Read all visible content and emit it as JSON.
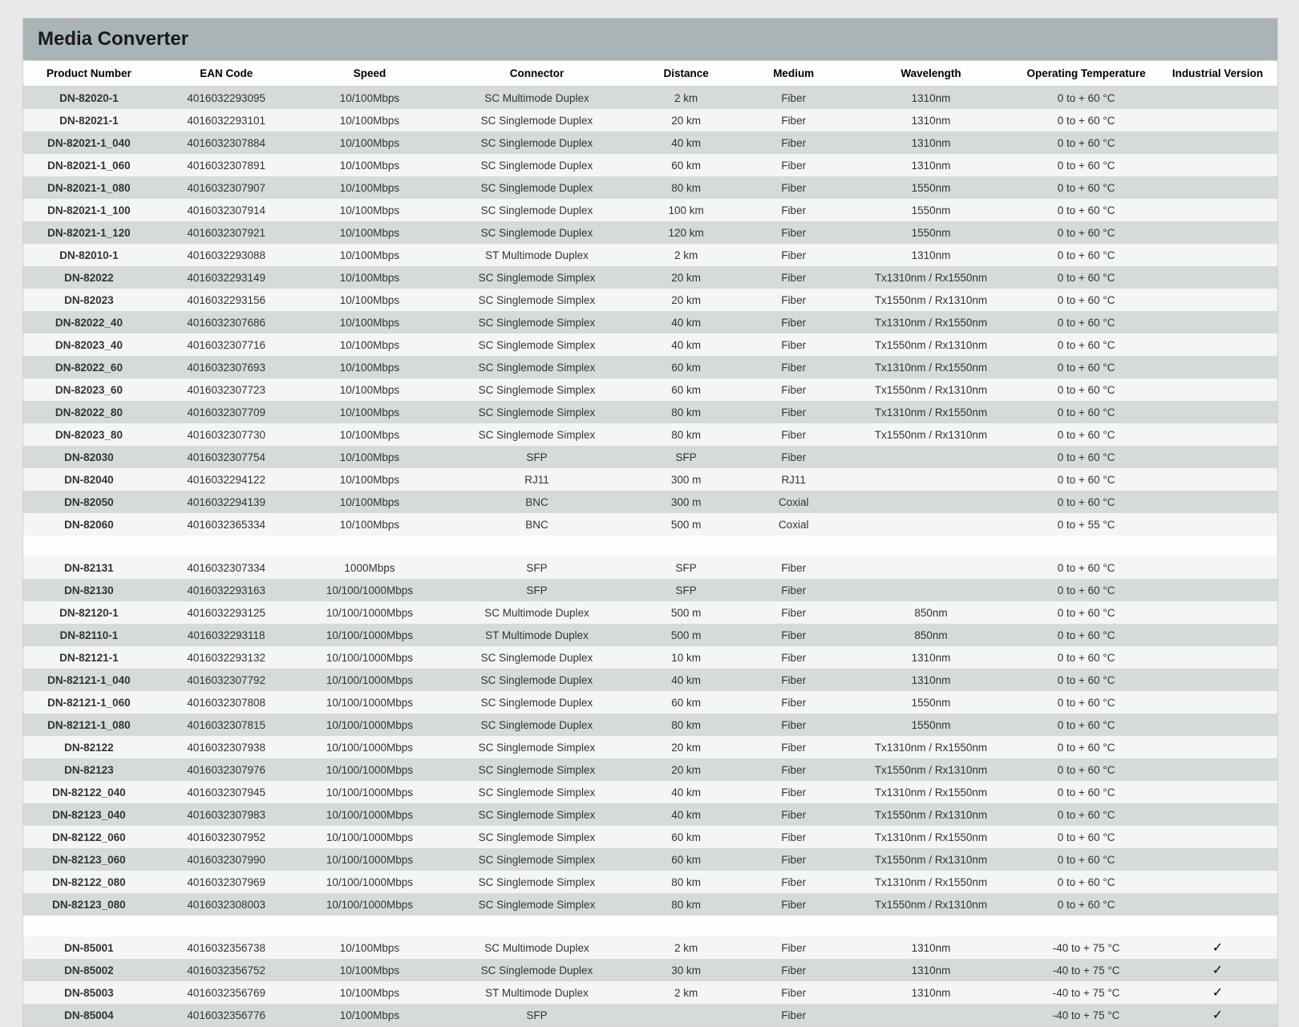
{
  "layout": {
    "page_bg": "#e9e9e9",
    "header_bg": "#a9b4b7",
    "row_light_bg": "#f4f5f5",
    "row_dark_bg": "#d5dadb",
    "row_gap_bg": "#fefefe",
    "font_family": "Arial",
    "header_fontsize": 24,
    "body_fontsize": 13.5,
    "col_widths_pct": [
      11,
      12,
      12,
      16,
      9,
      9,
      14,
      12,
      10
    ]
  },
  "title": "Media Converter",
  "columns": [
    "Product Number",
    "EAN Code",
    "Speed",
    "Connector",
    "Distance",
    "Medium",
    "Wavelength",
    "Operating Temperature",
    "Industrial Version"
  ],
  "rows": [
    {
      "shade": "dark",
      "c": [
        "DN-82020-1",
        "4016032293095",
        "10/100Mbps",
        "SC Multimode Duplex",
        "2 km",
        "Fiber",
        "1310nm",
        "0 to + 60 °C",
        ""
      ]
    },
    {
      "shade": "light",
      "c": [
        "DN-82021-1",
        "4016032293101",
        "10/100Mbps",
        "SC Singlemode Duplex",
        "20 km",
        "Fiber",
        "1310nm",
        "0 to + 60 °C",
        ""
      ]
    },
    {
      "shade": "dark",
      "c": [
        "DN-82021-1_040",
        "4016032307884",
        "10/100Mbps",
        "SC Singlemode Duplex",
        "40 km",
        "Fiber",
        "1310nm",
        "0 to + 60 °C",
        ""
      ]
    },
    {
      "shade": "light",
      "c": [
        "DN-82021-1_060",
        "4016032307891",
        "10/100Mbps",
        "SC Singlemode Duplex",
        "60 km",
        "Fiber",
        "1310nm",
        "0 to + 60 °C",
        ""
      ]
    },
    {
      "shade": "dark",
      "c": [
        "DN-82021-1_080",
        "4016032307907",
        "10/100Mbps",
        "SC Singlemode Duplex",
        "80 km",
        "Fiber",
        "1550nm",
        "0 to + 60 °C",
        ""
      ]
    },
    {
      "shade": "light",
      "c": [
        "DN-82021-1_100",
        "4016032307914",
        "10/100Mbps",
        "SC Singlemode Duplex",
        "100 km",
        "Fiber",
        "1550nm",
        "0 to + 60 °C",
        ""
      ]
    },
    {
      "shade": "dark",
      "c": [
        "DN-82021-1_120",
        "4016032307921",
        "10/100Mbps",
        "SC Singlemode Duplex",
        "120 km",
        "Fiber",
        "1550nm",
        "0 to + 60 °C",
        ""
      ]
    },
    {
      "shade": "light",
      "c": [
        "DN-82010-1",
        "4016032293088",
        "10/100Mbps",
        "ST Multimode Duplex",
        "2 km",
        "Fiber",
        "1310nm",
        "0 to + 60 °C",
        ""
      ]
    },
    {
      "shade": "dark",
      "c": [
        "DN-82022",
        "4016032293149",
        "10/100Mbps",
        "SC Singlemode Simplex",
        "20 km",
        "Fiber",
        "Tx1310nm / Rx1550nm",
        "0 to + 60 °C",
        ""
      ]
    },
    {
      "shade": "light",
      "c": [
        "DN-82023",
        "4016032293156",
        "10/100Mbps",
        "SC Singlemode Simplex",
        "20 km",
        "Fiber",
        "Tx1550nm / Rx1310nm",
        "0 to + 60 °C",
        ""
      ]
    },
    {
      "shade": "dark",
      "c": [
        "DN-82022_40",
        "4016032307686",
        "10/100Mbps",
        "SC Singlemode Simplex",
        "40 km",
        "Fiber",
        "Tx1310nm / Rx1550nm",
        "0 to + 60 °C",
        ""
      ]
    },
    {
      "shade": "light",
      "c": [
        "DN-82023_40",
        "4016032307716",
        "10/100Mbps",
        "SC Singlemode Simplex",
        "40 km",
        "Fiber",
        "Tx1550nm / Rx1310nm",
        "0 to + 60 °C",
        ""
      ]
    },
    {
      "shade": "dark",
      "c": [
        "DN-82022_60",
        "4016032307693",
        "10/100Mbps",
        "SC Singlemode Simplex",
        "60 km",
        "Fiber",
        "Tx1310nm / Rx1550nm",
        "0 to + 60 °C",
        ""
      ]
    },
    {
      "shade": "light",
      "c": [
        "DN-82023_60",
        "4016032307723",
        "10/100Mbps",
        "SC Singlemode Simplex",
        "60 km",
        "Fiber",
        "Tx1550nm / Rx1310nm",
        "0 to + 60 °C",
        ""
      ]
    },
    {
      "shade": "dark",
      "c": [
        "DN-82022_80",
        "4016032307709",
        "10/100Mbps",
        "SC Singlemode Simplex",
        "80 km",
        "Fiber",
        "Tx1310nm / Rx1550nm",
        "0 to + 60 °C",
        ""
      ]
    },
    {
      "shade": "light",
      "c": [
        "DN-82023_80",
        "4016032307730",
        "10/100Mbps",
        "SC Singlemode Simplex",
        "80 km",
        "Fiber",
        "Tx1550nm / Rx1310nm",
        "0 to + 60 °C",
        ""
      ]
    },
    {
      "shade": "dark",
      "c": [
        "DN-82030",
        "4016032307754",
        "10/100Mbps",
        "SFP",
        "SFP",
        "Fiber",
        "",
        "0 to + 60 °C",
        ""
      ]
    },
    {
      "shade": "light",
      "c": [
        "DN-82040",
        "4016032294122",
        "10/100Mbps",
        "RJ11",
        "300 m",
        "RJ11",
        "",
        "0 to + 60 °C",
        ""
      ]
    },
    {
      "shade": "dark",
      "c": [
        "DN-82050",
        "4016032294139",
        "10/100Mbps",
        "BNC",
        "300 m",
        "Coxial",
        "",
        "0 to + 60 °C",
        ""
      ]
    },
    {
      "shade": "light",
      "c": [
        "DN-82060",
        "4016032365334",
        "10/100Mbps",
        "BNC",
        "500 m",
        "Coxial",
        "",
        "0 to + 55 °C",
        ""
      ]
    },
    {
      "shade": "gap",
      "c": [
        "",
        "",
        "",
        "",
        "",
        "",
        "",
        "",
        ""
      ]
    },
    {
      "shade": "light",
      "c": [
        "DN-82131",
        "4016032307334",
        "1000Mbps",
        "SFP",
        "SFP",
        "Fiber",
        "",
        "0 to + 60 °C",
        ""
      ]
    },
    {
      "shade": "dark",
      "c": [
        "DN-82130",
        "4016032293163",
        "10/100/1000Mbps",
        "SFP",
        "SFP",
        "Fiber",
        "",
        "0 to + 60 °C",
        ""
      ]
    },
    {
      "shade": "light",
      "c": [
        "DN-82120-1",
        "4016032293125",
        "10/100/1000Mbps",
        "SC Multimode Duplex",
        "500 m",
        "Fiber",
        "850nm",
        "0 to + 60 °C",
        ""
      ]
    },
    {
      "shade": "dark",
      "c": [
        "DN-82110-1",
        "4016032293118",
        "10/100/1000Mbps",
        "ST Multimode Duplex",
        "500 m",
        "Fiber",
        "850nm",
        "0 to + 60 °C",
        ""
      ]
    },
    {
      "shade": "light",
      "c": [
        "DN-82121-1",
        "4016032293132",
        "10/100/1000Mbps",
        "SC Singlemode Duplex",
        "10 km",
        "Fiber",
        "1310nm",
        "0 to + 60 °C",
        ""
      ]
    },
    {
      "shade": "dark",
      "c": [
        "DN-82121-1_040",
        "4016032307792",
        "10/100/1000Mbps",
        "SC Singlemode Duplex",
        "40 km",
        "Fiber",
        "1310nm",
        "0 to + 60 °C",
        ""
      ]
    },
    {
      "shade": "light",
      "c": [
        "DN-82121-1_060",
        "4016032307808",
        "10/100/1000Mbps",
        "SC Singlemode Duplex",
        "60 km",
        "Fiber",
        "1550nm",
        "0 to + 60 °C",
        ""
      ]
    },
    {
      "shade": "dark",
      "c": [
        "DN-82121-1_080",
        "4016032307815",
        "10/100/1000Mbps",
        "SC Singlemode Duplex",
        "80 km",
        "Fiber",
        "1550nm",
        "0 to + 60 °C",
        ""
      ]
    },
    {
      "shade": "light",
      "c": [
        "DN-82122",
        "4016032307938",
        "10/100/1000Mbps",
        "SC Singlemode Simplex",
        "20 km",
        "Fiber",
        "Tx1310nm / Rx1550nm",
        "0 to + 60 °C",
        ""
      ]
    },
    {
      "shade": "dark",
      "c": [
        "DN-82123",
        "4016032307976",
        "10/100/1000Mbps",
        "SC Singlemode Simplex",
        "20 km",
        "Fiber",
        "Tx1550nm / Rx1310nm",
        "0 to + 60 °C",
        ""
      ]
    },
    {
      "shade": "light",
      "c": [
        "DN-82122_040",
        "4016032307945",
        "10/100/1000Mbps",
        "SC Singlemode Simplex",
        "40 km",
        "Fiber",
        "Tx1310nm / Rx1550nm",
        "0 to + 60 °C",
        ""
      ]
    },
    {
      "shade": "dark",
      "c": [
        "DN-82123_040",
        "4016032307983",
        "10/100/1000Mbps",
        "SC Singlemode Simplex",
        "40 km",
        "Fiber",
        "Tx1550nm / Rx1310nm",
        "0 to + 60 °C",
        ""
      ]
    },
    {
      "shade": "light",
      "c": [
        "DN-82122_060",
        "4016032307952",
        "10/100/1000Mbps",
        "SC Singlemode Simplex",
        "60 km",
        "Fiber",
        "Tx1310nm / Rx1550nm",
        "0 to + 60 °C",
        ""
      ]
    },
    {
      "shade": "dark",
      "c": [
        "DN-82123_060",
        "4016032307990",
        "10/100/1000Mbps",
        "SC Singlemode Simplex",
        "60 km",
        "Fiber",
        "Tx1550nm / Rx1310nm",
        "0 to + 60 °C",
        ""
      ]
    },
    {
      "shade": "light",
      "c": [
        "DN-82122_080",
        "4016032307969",
        "10/100/1000Mbps",
        "SC Singlemode Simplex",
        "80 km",
        "Fiber",
        "Tx1310nm / Rx1550nm",
        "0 to + 60 °C",
        ""
      ]
    },
    {
      "shade": "dark",
      "c": [
        "DN-82123_080",
        "4016032308003",
        "10/100/1000Mbps",
        "SC Singlemode Simplex",
        "80 km",
        "Fiber",
        "Tx1550nm / Rx1310nm",
        "0 to + 60 °C",
        ""
      ]
    },
    {
      "shade": "gap",
      "c": [
        "",
        "",
        "",
        "",
        "",
        "",
        "",
        "",
        ""
      ]
    },
    {
      "shade": "light",
      "c": [
        "DN-85001",
        "4016032356738",
        "10/100Mbps",
        "SC Multimode Duplex",
        "2 km",
        "Fiber",
        "1310nm",
        "-40 to + 75 °C",
        "✓"
      ]
    },
    {
      "shade": "dark",
      "c": [
        "DN-85002",
        "4016032356752",
        "10/100Mbps",
        "SC Singlemode Duplex",
        "30 km",
        "Fiber",
        "1310nm",
        "-40 to + 75 °C",
        "✓"
      ]
    },
    {
      "shade": "light",
      "c": [
        "DN-85003",
        "4016032356769",
        "10/100Mbps",
        "ST Multimode Duplex",
        "2 km",
        "Fiber",
        "1310nm",
        "-40 to + 75 °C",
        "✓"
      ]
    },
    {
      "shade": "dark",
      "c": [
        "DN-85004",
        "4016032356776",
        "10/100Mbps",
        "SFP",
        "",
        "Fiber",
        "",
        "-40 to + 75 °C",
        "✓"
      ]
    }
  ]
}
